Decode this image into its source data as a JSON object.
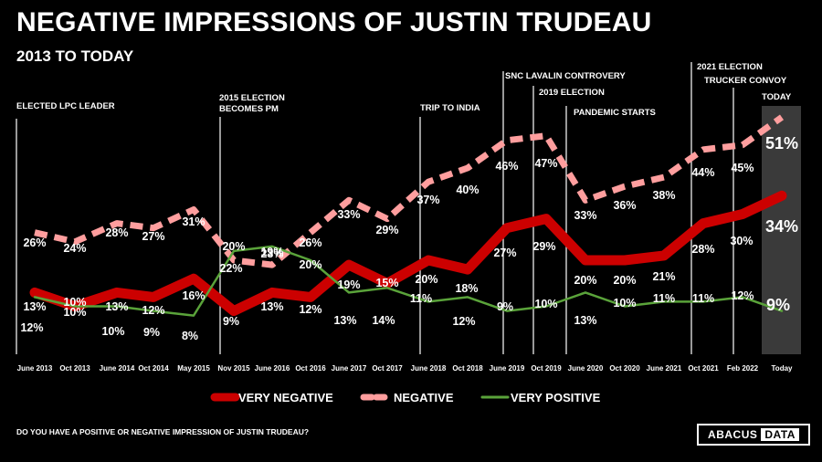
{
  "header": {
    "title": "NEGATIVE IMPRESSIONS OF JUSTIN TRUDEAU",
    "subtitle": "2013 TO TODAY"
  },
  "footer": {
    "question": "DO YOU HAVE A POSITIVE OR NEGATIVE IMPRESSION OF JUSTIN TRUDEAU?",
    "logo_word1": "ABACUS",
    "logo_word2": "DATA"
  },
  "colors": {
    "very_negative": "#cc0000",
    "negative": "#ff9e9e",
    "very_positive": "#5aa33a",
    "background": "#000000",
    "today_band": "#3a3a3a"
  },
  "chart_data": {
    "type": "line",
    "title": "NEGATIVE IMPRESSIONS OF JUSTIN TRUDEAU",
    "subtitle": "2013 TO TODAY",
    "categories": [
      "June 2013",
      "Oct 2013",
      "June 2014",
      "Oct 2014",
      "May 2015",
      "Nov 2015",
      "June 2016",
      "Oct 2016",
      "June 2017",
      "Oct 2017",
      "June 2018",
      "Oct 2018",
      "June 2019",
      "Oct 2019",
      "June 2020",
      "Oct 2020",
      "June 2021",
      "Oct 2021",
      "Feb 2022",
      "Today"
    ],
    "ylim": [
      0,
      60
    ],
    "series": [
      {
        "name": "VERY NEGATIVE",
        "style": "thick",
        "values": [
          13,
          10,
          13,
          12,
          16,
          9,
          13,
          12,
          19,
          15,
          20,
          18,
          27,
          29,
          20,
          20,
          21,
          28,
          30,
          34
        ],
        "labels": [
          "13%",
          "10%",
          "13%",
          "12%",
          "16%",
          "9%",
          "13%",
          "12%",
          "19%",
          "15%",
          "20%",
          "18%",
          "27%",
          "29%",
          "20%",
          "20%",
          "21%",
          "28%",
          "30%",
          "34%"
        ]
      },
      {
        "name": "NEGATIVE",
        "style": "dashed",
        "values": [
          26,
          24,
          28,
          27,
          31,
          20,
          19,
          26,
          33,
          29,
          37,
          40,
          46,
          47,
          33,
          36,
          38,
          44,
          45,
          51
        ],
        "labels": [
          "26%",
          "24%",
          "28%",
          "27%",
          "31%",
          "20%",
          "19%",
          "26%",
          "33%",
          "29%",
          "37%",
          "40%",
          "46%",
          "47%",
          "33%",
          "36%",
          "38%",
          "44%",
          "45%",
          "51%"
        ]
      },
      {
        "name": "VERY POSITIVE",
        "style": "thin",
        "values": [
          12,
          10,
          10,
          9,
          8,
          22,
          23,
          20,
          13,
          14,
          11,
          12,
          9,
          10,
          13,
          10,
          11,
          11,
          12,
          9
        ],
        "labels": [
          "12%",
          "10%",
          "10%",
          "9%",
          "8%",
          "22%",
          "23%",
          "20%",
          "13%",
          "14%",
          "11%",
          "12%",
          "9%",
          "10%",
          "13%",
          "10%",
          "11%",
          "11%",
          "12%",
          "9%"
        ]
      }
    ],
    "events": [
      {
        "label": "ELECTED LPC LEADER",
        "at": "before June 2013"
      },
      {
        "label": "2015 ELECTION BECOMES PM",
        "at": "Nov 2015"
      },
      {
        "label": "TRIP TO INDIA",
        "at": "June 2018"
      },
      {
        "label": "SNC LAVALIN CONTROVERY",
        "at": "June 2019"
      },
      {
        "label": "2019 ELECTION",
        "at": "Oct 2019"
      },
      {
        "label": "PANDEMIC STARTS",
        "at": "June 2020"
      },
      {
        "label": "2021 ELECTION",
        "at": "Oct 2021"
      },
      {
        "label": "TRUCKER CONVOY",
        "at": "Feb 2022"
      },
      {
        "label": "TODAY",
        "at": "Today"
      }
    ],
    "legend_position": "bottom-center",
    "grid": false
  }
}
